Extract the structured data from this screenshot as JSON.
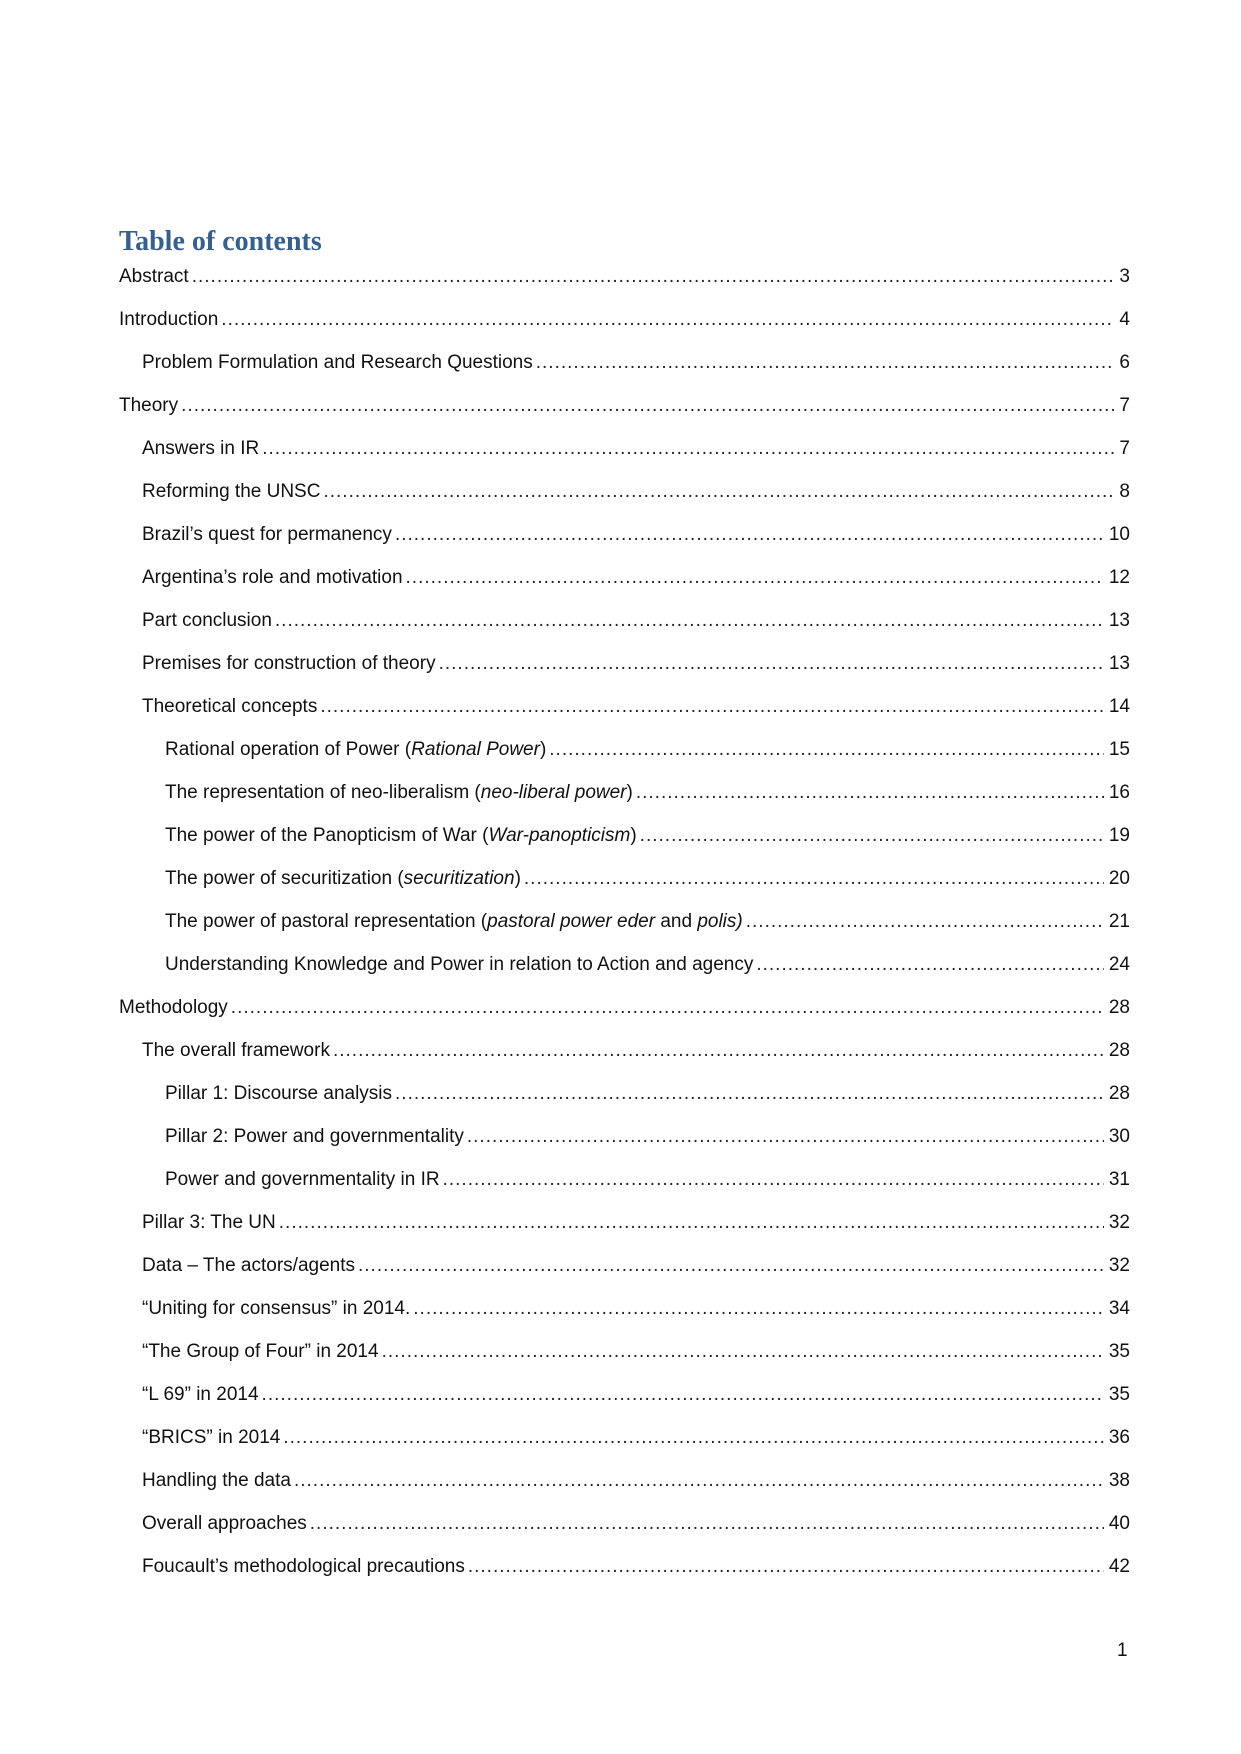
{
  "title": "Table of contents",
  "entries": [
    {
      "level": 1,
      "parts": [
        {
          "t": "Abstract"
        }
      ],
      "page": "3"
    },
    {
      "level": 1,
      "parts": [
        {
          "t": "Introduction"
        }
      ],
      "page": "4"
    },
    {
      "level": 2,
      "parts": [
        {
          "t": "Problem Formulation and Research Questions"
        }
      ],
      "page": "6"
    },
    {
      "level": 1,
      "parts": [
        {
          "t": "Theory"
        }
      ],
      "page": "7"
    },
    {
      "level": 2,
      "parts": [
        {
          "t": "Answers in IR"
        }
      ],
      "page": "7"
    },
    {
      "level": 2,
      "parts": [
        {
          "t": "Reforming the UNSC"
        }
      ],
      "page": "8"
    },
    {
      "level": 2,
      "parts": [
        {
          "t": "Brazil’s quest for permanency"
        }
      ],
      "page": "10"
    },
    {
      "level": 2,
      "parts": [
        {
          "t": "Argentina’s role and motivation"
        }
      ],
      "page": "12"
    },
    {
      "level": 2,
      "parts": [
        {
          "t": "Part conclusion"
        }
      ],
      "page": "13"
    },
    {
      "level": 2,
      "parts": [
        {
          "t": "Premises for construction of theory"
        }
      ],
      "page": "13"
    },
    {
      "level": 2,
      "parts": [
        {
          "t": "Theoretical concepts"
        }
      ],
      "page": "14"
    },
    {
      "level": 3,
      "parts": [
        {
          "t": "Rational operation of Power ("
        },
        {
          "t": "Rational Power",
          "i": true
        },
        {
          "t": ")"
        }
      ],
      "page": "15"
    },
    {
      "level": 3,
      "parts": [
        {
          "t": "The representation of neo-liberalism ("
        },
        {
          "t": "neo-liberal power",
          "i": true
        },
        {
          "t": ")"
        }
      ],
      "page": "16"
    },
    {
      "level": 3,
      "parts": [
        {
          "t": "The power of the Panopticism of War ("
        },
        {
          "t": "War-panopticism",
          "i": true
        },
        {
          "t": ")"
        }
      ],
      "page": "19"
    },
    {
      "level": 3,
      "parts": [
        {
          "t": "The power of securitization ("
        },
        {
          "t": "securitization",
          "i": true
        },
        {
          "t": ")"
        }
      ],
      "page": "20"
    },
    {
      "level": 3,
      "parts": [
        {
          "t": "The power of pastoral representation ("
        },
        {
          "t": "pastoral power eder",
          "i": true
        },
        {
          "t": " and "
        },
        {
          "t": "polis)",
          "i": true
        }
      ],
      "page": "21"
    },
    {
      "level": 3,
      "parts": [
        {
          "t": "Understanding Knowledge and Power in relation to Action and agency"
        }
      ],
      "page": "24"
    },
    {
      "level": 1,
      "parts": [
        {
          "t": "Methodology"
        }
      ],
      "page": "28"
    },
    {
      "level": 2,
      "parts": [
        {
          "t": "The overall framework"
        }
      ],
      "page": "28"
    },
    {
      "level": 3,
      "parts": [
        {
          "t": "Pillar 1: Discourse analysis"
        }
      ],
      "page": "28"
    },
    {
      "level": 3,
      "parts": [
        {
          "t": "Pillar 2: Power and governmentality"
        }
      ],
      "page": "30"
    },
    {
      "level": 3,
      "parts": [
        {
          "t": "Power and governmentality in IR"
        }
      ],
      "page": "31"
    },
    {
      "level": 2,
      "parts": [
        {
          "t": "Pillar 3: The UN"
        }
      ],
      "page": "32"
    },
    {
      "level": 2,
      "parts": [
        {
          "t": "Data – The actors/agents"
        }
      ],
      "page": "32"
    },
    {
      "level": 2,
      "parts": [
        {
          "t": "“Uniting for consensus” in 2014."
        }
      ],
      "page": "34"
    },
    {
      "level": 2,
      "parts": [
        {
          "t": "“The Group of Four” in 2014"
        }
      ],
      "page": "35"
    },
    {
      "level": 2,
      "parts": [
        {
          "t": "“L 69” in 2014"
        }
      ],
      "page": "35"
    },
    {
      "level": 2,
      "parts": [
        {
          "t": "“BRICS” in 2014"
        }
      ],
      "page": "36"
    },
    {
      "level": 2,
      "parts": [
        {
          "t": "Handling the data"
        }
      ],
      "page": "38"
    },
    {
      "level": 2,
      "parts": [
        {
          "t": "Overall approaches"
        }
      ],
      "page": "40"
    },
    {
      "level": 2,
      "parts": [
        {
          "t": "Foucault’s methodological precautions"
        }
      ],
      "page": "42"
    }
  ],
  "page_number": "1"
}
